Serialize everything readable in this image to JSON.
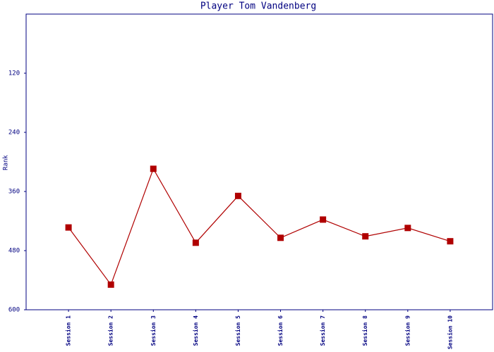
{
  "chart_data": {
    "type": "line",
    "title": "Player Tom Vandenberg",
    "y_label": "Rank",
    "categories": [
      "Session 1",
      "Session 2",
      "Session 3",
      "Session 4",
      "Session 5",
      "Session 6",
      "Session 7",
      "Session 8",
      "Session 9",
      "Session 10"
    ],
    "series": [
      {
        "name": "Rank",
        "color": "#b00000",
        "values": [
          433,
          549,
          314,
          464,
          369,
          454,
          417,
          451,
          434,
          461
        ]
      }
    ],
    "ylim": [
      600,
      0
    ],
    "yticks": [
      120,
      240,
      360,
      480,
      600
    ],
    "grid": false
  }
}
